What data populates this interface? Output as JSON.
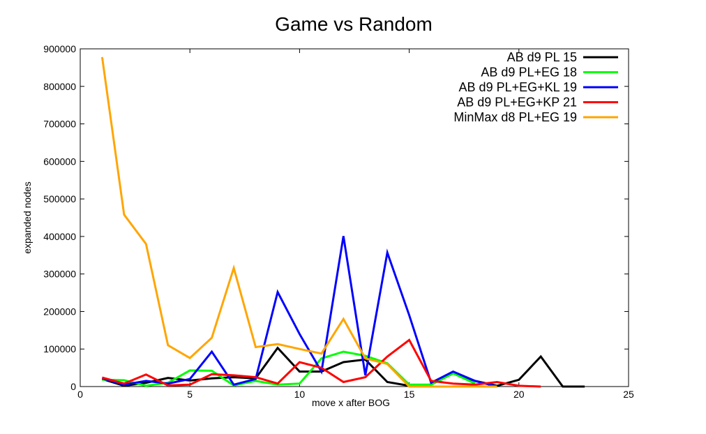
{
  "chart_data": {
    "type": "line",
    "title": "Game vs Random",
    "xlabel": "move x after BOG",
    "ylabel": "expanded nodes",
    "xlim": [
      0,
      25
    ],
    "ylim": [
      0,
      900000
    ],
    "xticks": [
      0,
      5,
      10,
      15,
      20,
      25
    ],
    "yticks": [
      0,
      100000,
      200000,
      300000,
      400000,
      500000,
      600000,
      700000,
      800000,
      900000
    ],
    "grid": false,
    "legend_position": "top-right",
    "series": [
      {
        "name": "AB d9 PL 15",
        "color": "#000000",
        "x": [
          1,
          2,
          3,
          4,
          5,
          6,
          7,
          8,
          9,
          10,
          11,
          12,
          13,
          14,
          15,
          16,
          17,
          18,
          19,
          20,
          21,
          22,
          23
        ],
        "y": [
          20000,
          2000,
          10000,
          23000,
          16000,
          22000,
          25000,
          22000,
          103000,
          40000,
          40000,
          65000,
          72000,
          12000,
          2000,
          5000,
          35000,
          15000,
          2000,
          18000,
          80000,
          0,
          0
        ]
      },
      {
        "name": "AB d9 PL+EG 18",
        "color": "#00ff00",
        "x": [
          1,
          2,
          3,
          4,
          5,
          6,
          7,
          8,
          9,
          10,
          11,
          12,
          13,
          14,
          15,
          16,
          17,
          18
        ],
        "y": [
          18000,
          17000,
          2000,
          10000,
          43000,
          42000,
          3000,
          15000,
          5000,
          8000,
          75000,
          93000,
          82000,
          62000,
          5000,
          5000,
          35000,
          8000
        ]
      },
      {
        "name": "AB d9 PL+EG+KL 19",
        "color": "#0000ff",
        "x": [
          1,
          2,
          3,
          4,
          5,
          6,
          7,
          8,
          9,
          10,
          11,
          12,
          13,
          14,
          15,
          16,
          17,
          18,
          19
        ],
        "y": [
          22000,
          5000,
          15000,
          8000,
          20000,
          93000,
          5000,
          20000,
          252000,
          140000,
          40000,
          401000,
          30000,
          357000,
          190000,
          10000,
          40000,
          15000,
          0
        ]
      },
      {
        "name": "AB d9 PL+EG+KP 21",
        "color": "#ff0000",
        "x": [
          1,
          2,
          3,
          4,
          5,
          6,
          7,
          8,
          9,
          10,
          11,
          12,
          13,
          14,
          15,
          16,
          17,
          18,
          19,
          20,
          21
        ],
        "y": [
          24000,
          8000,
          32000,
          3000,
          5000,
          33000,
          30000,
          25000,
          8000,
          65000,
          50000,
          12000,
          25000,
          80000,
          124000,
          15000,
          8000,
          5000,
          12000,
          2000,
          0
        ]
      },
      {
        "name": "MinMax d8 PL+EG 19",
        "color": "#ffa500",
        "x": [
          1,
          2,
          3,
          4,
          5,
          6,
          7,
          8,
          9,
          10,
          11,
          12,
          13,
          14,
          15,
          16,
          17,
          18,
          19
        ],
        "y": [
          878000,
          458000,
          380000,
          110000,
          76000,
          130000,
          316000,
          105000,
          113000,
          100000,
          88000,
          180000,
          75000,
          60000,
          0,
          0,
          0,
          0,
          0
        ]
      }
    ]
  }
}
